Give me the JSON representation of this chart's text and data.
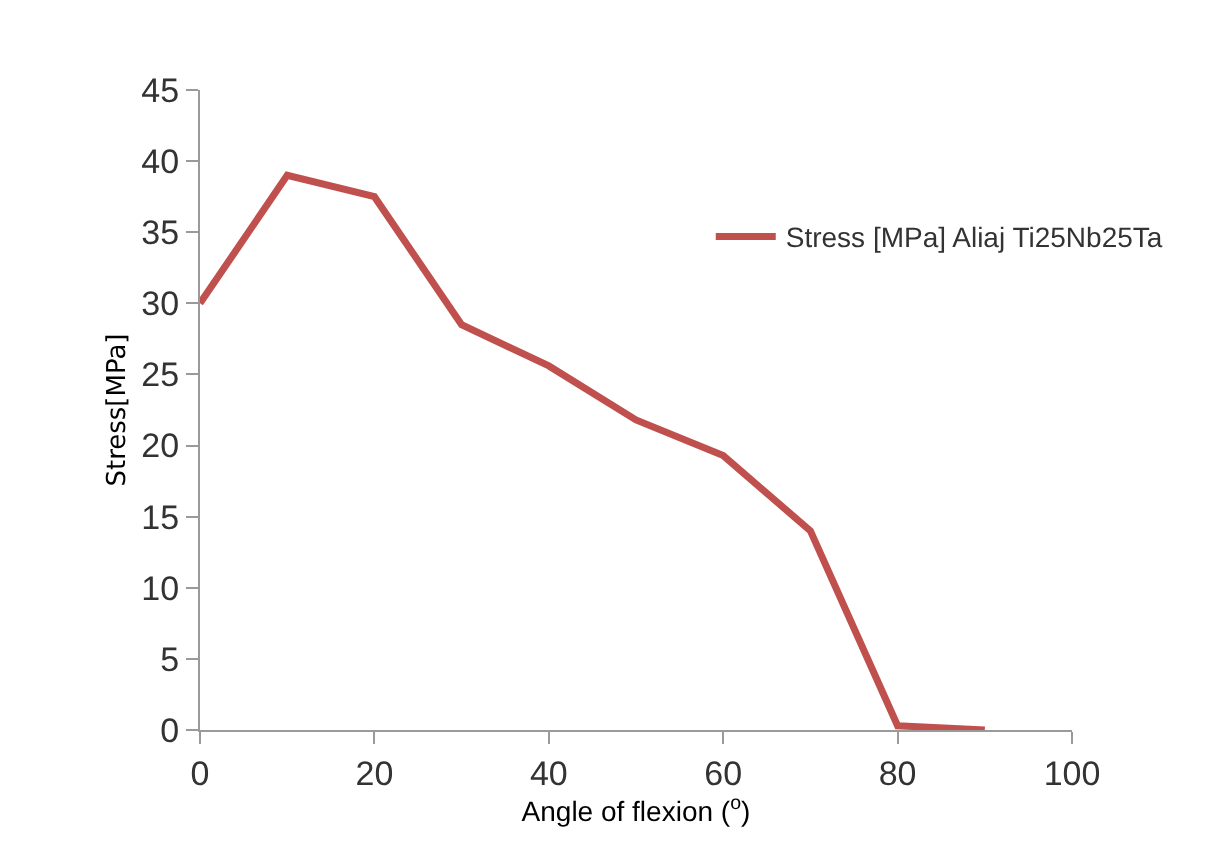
{
  "chart_data": {
    "type": "line",
    "xlabel": "Angle of flexion ($^{o}$)",
    "ylabel": "Stress[MPa]",
    "x": [
      0,
      10,
      20,
      30,
      40,
      50,
      60,
      70,
      80,
      90
    ],
    "series": [
      {
        "name": "Stress [MPa] Aliaj Ti25Nb25Ta",
        "color": "#c0504d",
        "values": [
          30,
          39,
          37.5,
          28.5,
          25.6,
          21.8,
          19.3,
          14,
          0.3,
          0
        ]
      }
    ],
    "xlim": [
      0,
      100
    ],
    "xticks": [
      0,
      20,
      40,
      60,
      80,
      100
    ],
    "ylim": [
      0,
      45
    ],
    "yticks": [
      0,
      5,
      10,
      15,
      20,
      25,
      30,
      35,
      40,
      45
    ],
    "legend": "top right",
    "marker": "none",
    "line_style": "solid"
  }
}
